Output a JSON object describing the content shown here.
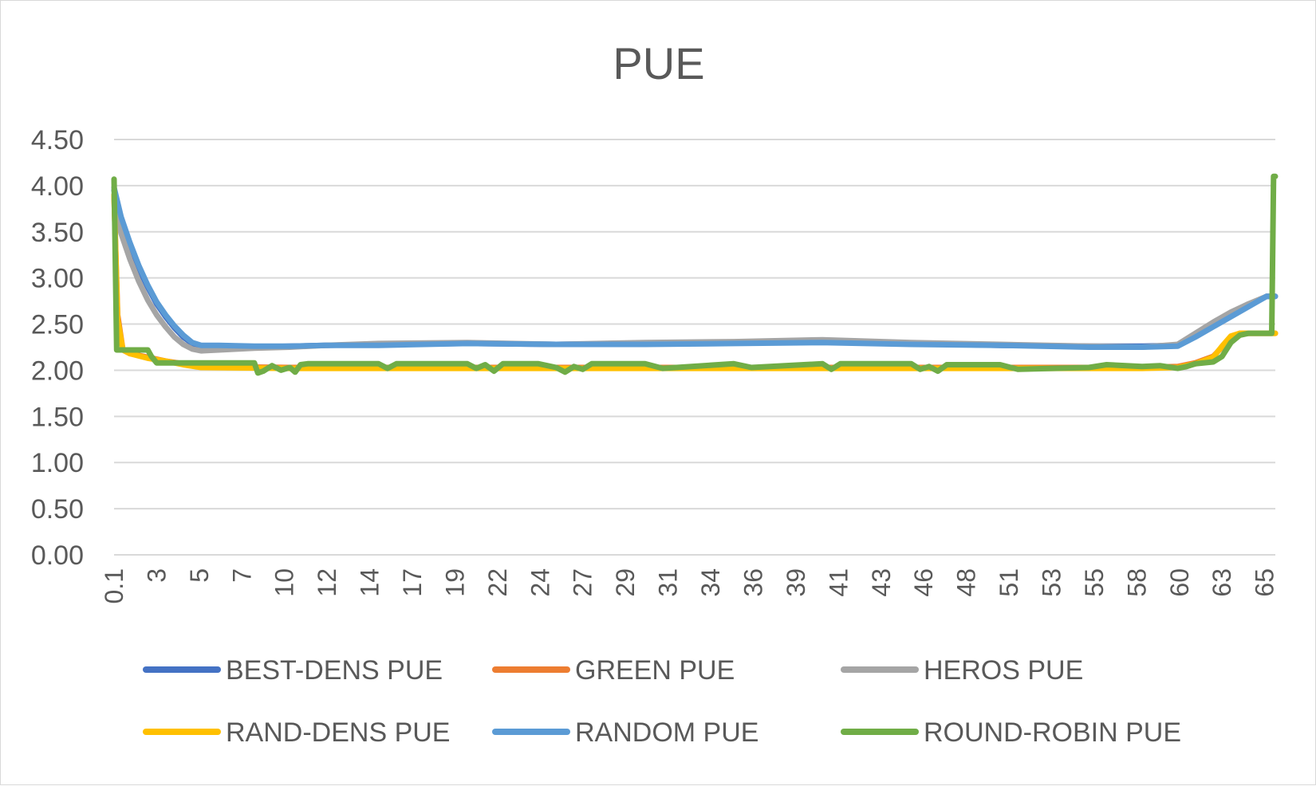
{
  "chart_data": {
    "type": "line",
    "title": "PUE",
    "xlabel": "",
    "ylabel": "",
    "ylim": [
      0,
      4.5
    ],
    "y_ticks": [
      "0.00",
      "0.50",
      "1.00",
      "1.50",
      "2.00",
      "2.50",
      "3.00",
      "3.50",
      "4.00",
      "4.50"
    ],
    "y_tick_values": [
      0,
      0.5,
      1,
      1.5,
      2,
      2.5,
      3,
      3.5,
      4,
      4.5
    ],
    "x_range": [
      0.1,
      65.5
    ],
    "x_ticks": [
      "0.1",
      "3",
      "5",
      "7",
      "10",
      "12",
      "14",
      "17",
      "19",
      "22",
      "24",
      "27",
      "29",
      "31",
      "34",
      "36",
      "39",
      "41",
      "43",
      "46",
      "48",
      "51",
      "53",
      "55",
      "58",
      "60",
      "63",
      "65"
    ],
    "x_tick_values": [
      0.1,
      2.5,
      4.9,
      7.3,
      9.7,
      12.1,
      14.5,
      16.9,
      19.3,
      21.7,
      24.1,
      26.5,
      28.9,
      31.3,
      33.7,
      36.1,
      38.5,
      40.9,
      43.3,
      45.7,
      48.1,
      50.5,
      52.9,
      55.3,
      57.7,
      60.1,
      62.5,
      64.9
    ],
    "grid": true,
    "legend_position": "bottom",
    "series": [
      {
        "name": "BEST-DENS PUE",
        "color": "#4472C4",
        "x": [
          0.1,
          0.5,
          1,
          1.5,
          2,
          2.5,
          3,
          3.5,
          4,
          4.5,
          5,
          6,
          8,
          10,
          12,
          15,
          20,
          25,
          30,
          35,
          40,
          45,
          50,
          55,
          58,
          60,
          61,
          62,
          63,
          64,
          65,
          65.5
        ],
        "y": [
          3.95,
          3.62,
          3.35,
          3.1,
          2.9,
          2.72,
          2.58,
          2.46,
          2.36,
          2.29,
          2.26,
          2.26,
          2.25,
          2.26,
          2.27,
          2.28,
          2.29,
          2.28,
          2.29,
          2.3,
          2.32,
          2.29,
          2.27,
          2.26,
          2.26,
          2.27,
          2.37,
          2.48,
          2.59,
          2.7,
          2.8,
          2.8
        ]
      },
      {
        "name": "GREEN PUE",
        "color": "#ED7D31",
        "x": [
          0.1,
          0.3,
          0.6,
          1,
          2,
          3,
          4,
          5,
          10,
          20,
          30,
          40,
          50,
          55,
          58,
          60,
          61,
          62,
          62.5,
          63,
          63.5,
          64,
          65,
          65.5
        ],
        "y": [
          3.9,
          2.6,
          2.22,
          2.18,
          2.14,
          2.1,
          2.07,
          2.04,
          2.03,
          2.03,
          2.03,
          2.03,
          2.03,
          2.03,
          2.03,
          2.04,
          2.08,
          2.15,
          2.25,
          2.36,
          2.4,
          2.4,
          2.4,
          2.4
        ]
      },
      {
        "name": "HEROS PUE",
        "color": "#A5A5A5",
        "x": [
          0.1,
          0.5,
          1,
          1.5,
          2,
          2.5,
          3,
          3.5,
          4,
          4.5,
          5,
          6,
          8,
          10,
          12,
          15,
          20,
          25,
          30,
          35,
          40,
          45,
          50,
          55,
          58,
          60,
          61,
          62,
          63,
          64,
          65,
          65.5
        ],
        "y": [
          3.85,
          3.48,
          3.2,
          2.96,
          2.76,
          2.6,
          2.47,
          2.36,
          2.28,
          2.23,
          2.21,
          2.22,
          2.24,
          2.25,
          2.27,
          2.29,
          2.3,
          2.28,
          2.3,
          2.31,
          2.33,
          2.3,
          2.28,
          2.26,
          2.25,
          2.28,
          2.4,
          2.52,
          2.63,
          2.72,
          2.8,
          2.8
        ]
      },
      {
        "name": "RAND-DENS PUE",
        "color": "#FFC000",
        "x": [
          0.1,
          0.3,
          0.6,
          1,
          2,
          3,
          4,
          5,
          10,
          20,
          30,
          40,
          50,
          55,
          58,
          60,
          61,
          62,
          62.5,
          63,
          63.5,
          64,
          65,
          65.5
        ],
        "y": [
          3.9,
          2.55,
          2.22,
          2.18,
          2.13,
          2.1,
          2.06,
          2.03,
          2.02,
          2.02,
          2.02,
          2.02,
          2.02,
          2.02,
          2.02,
          2.03,
          2.07,
          2.14,
          2.26,
          2.37,
          2.4,
          2.4,
          2.4,
          2.4
        ]
      },
      {
        "name": "RANDOM PUE",
        "color": "#5B9BD5",
        "x": [
          0.1,
          0.5,
          1,
          1.5,
          2,
          2.5,
          3,
          3.5,
          4,
          4.5,
          5,
          6,
          8,
          10,
          12,
          15,
          20,
          25,
          30,
          35,
          40,
          45,
          50,
          55,
          58,
          60,
          61,
          62,
          63,
          64,
          65,
          65.5
        ],
        "y": [
          3.98,
          3.66,
          3.38,
          3.13,
          2.92,
          2.74,
          2.6,
          2.48,
          2.38,
          2.3,
          2.27,
          2.27,
          2.26,
          2.26,
          2.27,
          2.27,
          2.29,
          2.28,
          2.28,
          2.29,
          2.3,
          2.28,
          2.27,
          2.25,
          2.25,
          2.26,
          2.36,
          2.47,
          2.58,
          2.69,
          2.8,
          2.8
        ]
      },
      {
        "name": "ROUND-ROBIN PUE",
        "color": "#70AD47",
        "x": [
          0.1,
          0.25,
          0.4,
          1,
          2,
          2.2,
          2.5,
          5,
          8,
          8.2,
          8.5,
          9,
          9.5,
          10,
          10.3,
          10.6,
          11,
          15,
          15.5,
          16,
          20,
          20.5,
          21,
          21.5,
          22,
          24,
          25,
          25.5,
          26,
          26.5,
          27,
          30,
          31,
          35,
          36,
          40,
          40.5,
          41,
          45,
          45.5,
          46,
          46.5,
          47,
          50,
          51,
          55,
          56,
          58,
          59,
          60,
          60.5,
          61,
          62,
          62.5,
          63,
          63.5,
          64,
          65,
          65.3,
          65.4,
          65.5
        ],
        "y": [
          4.07,
          2.22,
          2.22,
          2.22,
          2.22,
          2.15,
          2.08,
          2.08,
          2.08,
          1.97,
          1.99,
          2.05,
          2.0,
          2.03,
          1.98,
          2.06,
          2.07,
          2.07,
          2.02,
          2.07,
          2.07,
          2.02,
          2.06,
          1.99,
          2.07,
          2.07,
          2.03,
          1.98,
          2.04,
          2.01,
          2.07,
          2.07,
          2.02,
          2.07,
          2.03,
          2.07,
          2.01,
          2.07,
          2.07,
          2.01,
          2.04,
          1.99,
          2.06,
          2.06,
          2.01,
          2.03,
          2.06,
          2.04,
          2.05,
          2.02,
          2.04,
          2.07,
          2.09,
          2.15,
          2.3,
          2.38,
          2.4,
          2.4,
          2.4,
          4.1,
          4.1
        ]
      }
    ]
  }
}
